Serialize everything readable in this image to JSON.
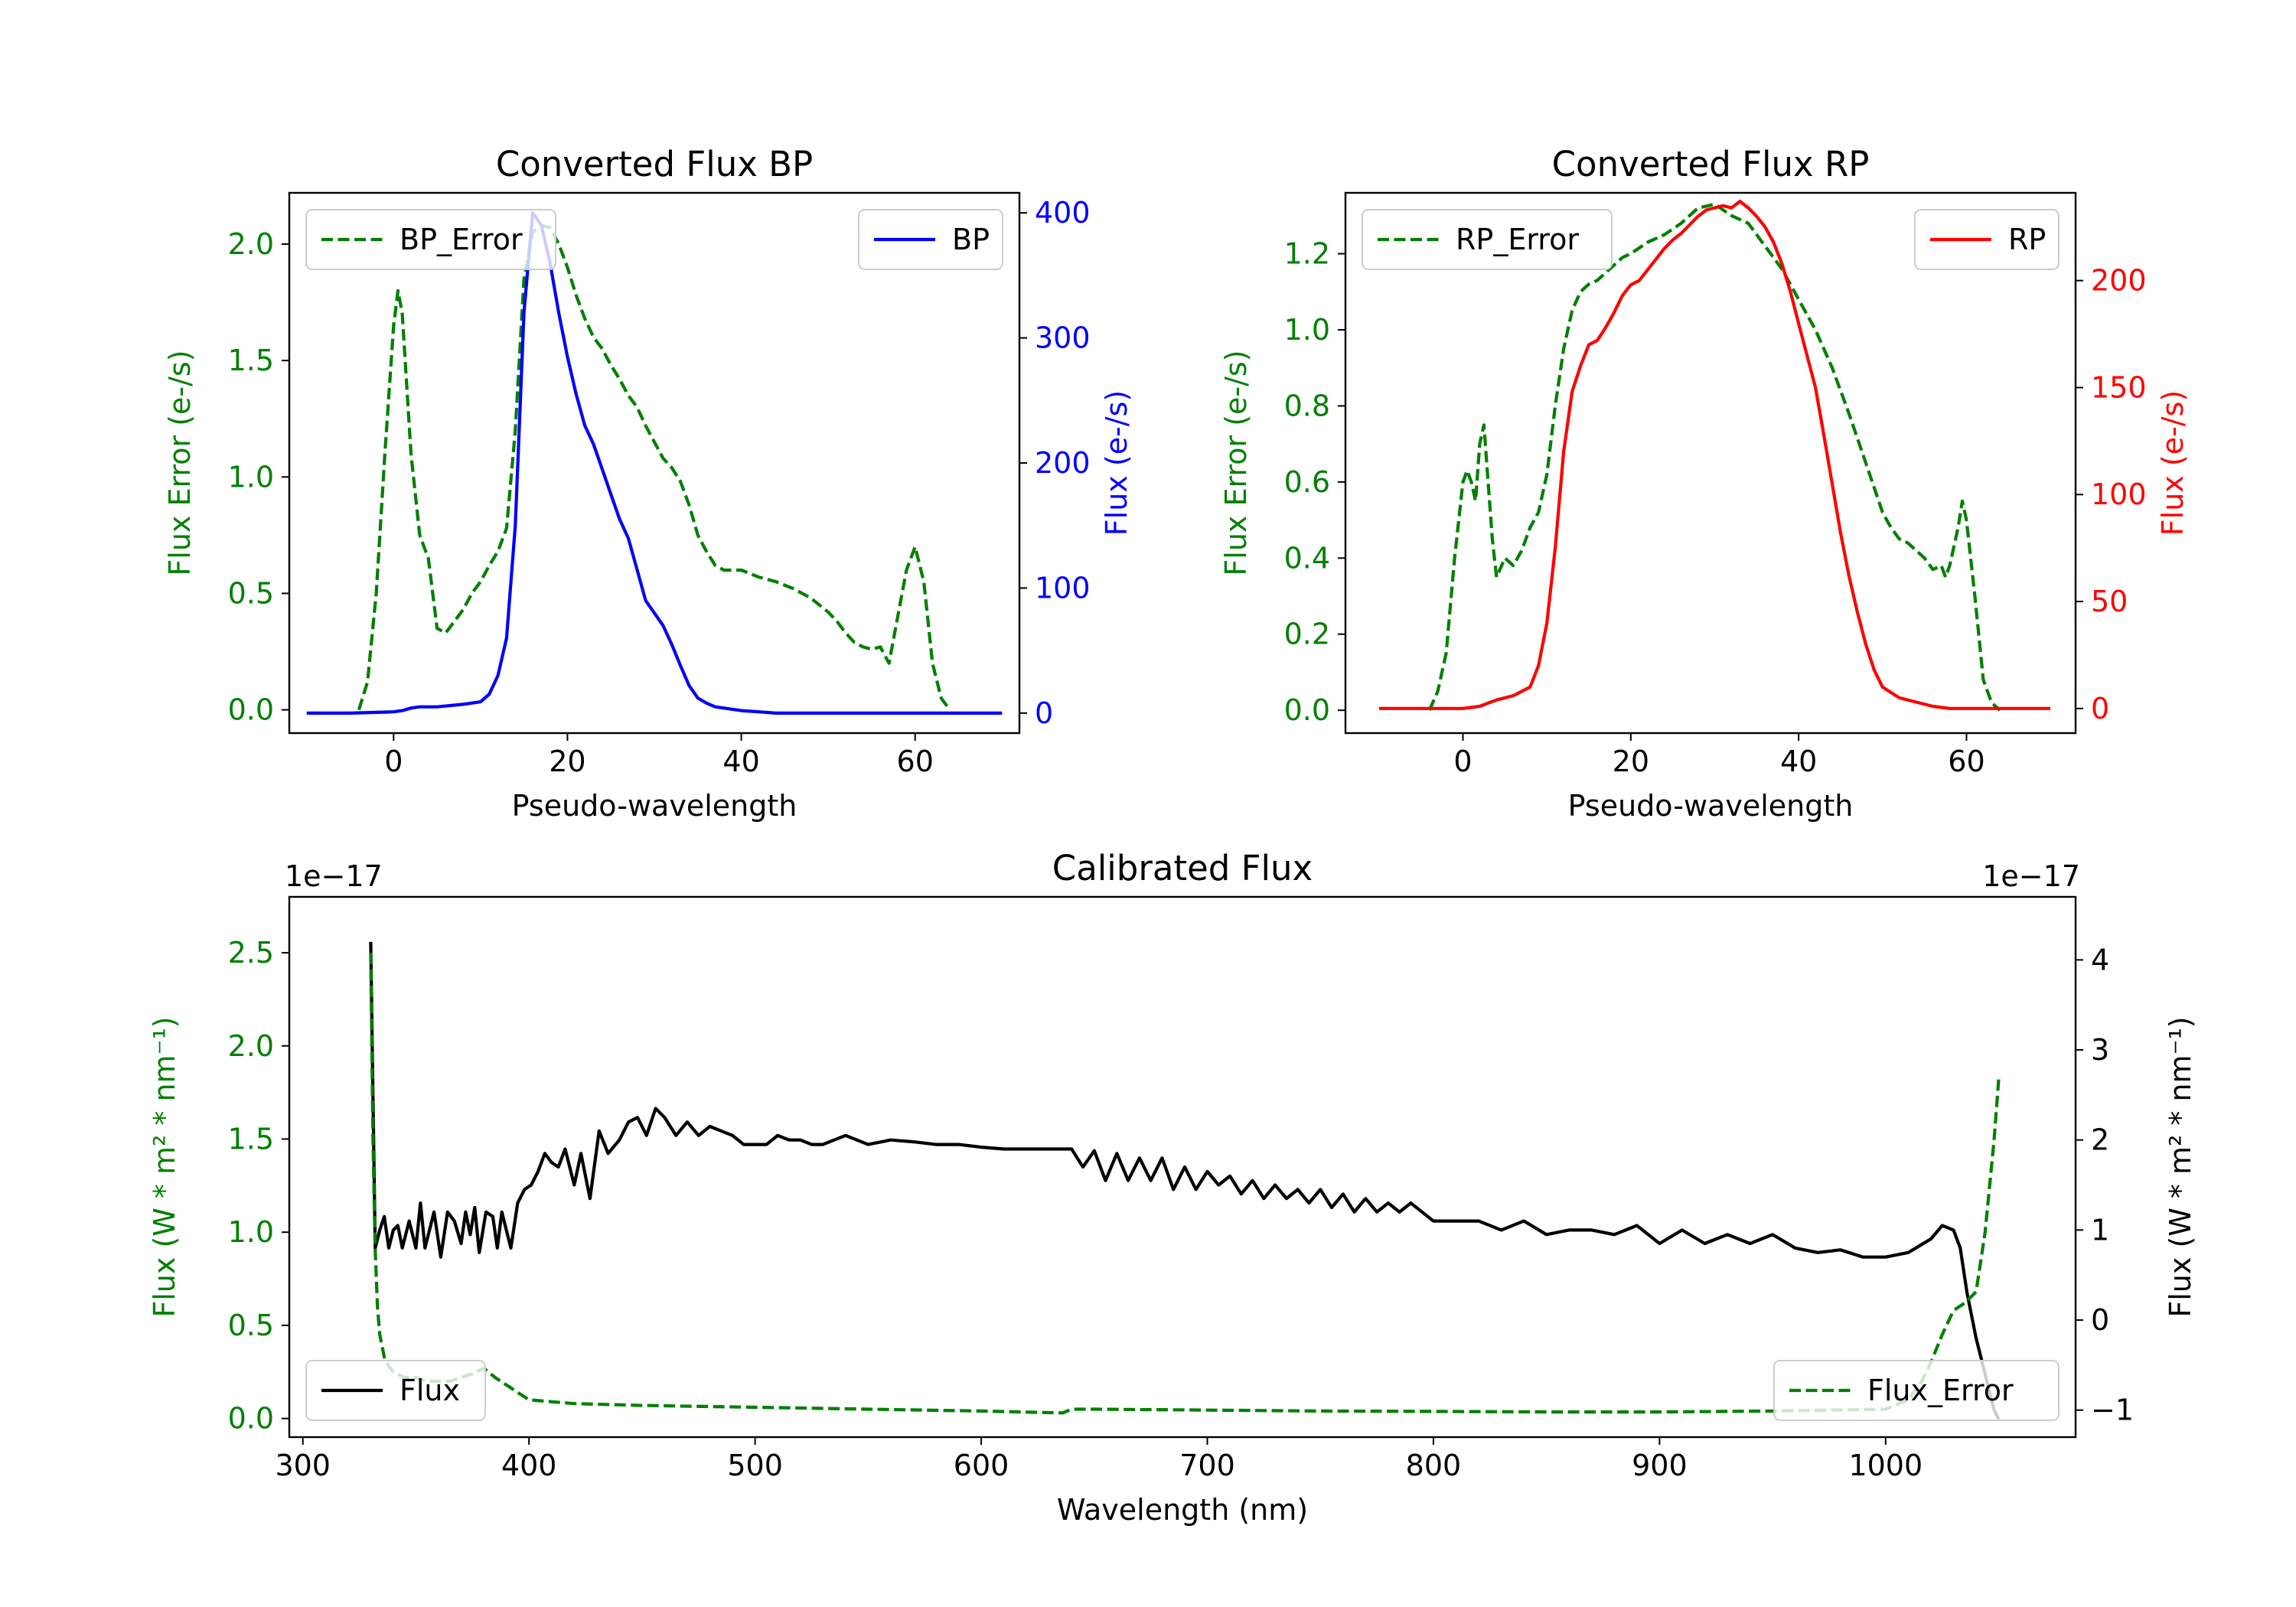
{
  "figure": {
    "background": "#ffffff"
  },
  "chart_data": [
    {
      "id": "bp",
      "type": "line",
      "title": "Converted Flux BP",
      "xlabel": "Pseudo-wavelength",
      "xlim": [
        -12,
        72
      ],
      "xticks": [
        0,
        20,
        40,
        60
      ],
      "xtick_labels": [
        "0",
        "20",
        "40",
        "60"
      ],
      "left_axis": {
        "label": "Flux Error (e-/s)",
        "color": "#008000",
        "ylim": [
          -0.1,
          2.22
        ],
        "ticks": [
          0.0,
          0.5,
          1.0,
          1.5,
          2.0
        ],
        "tick_labels": [
          "0.0",
          "0.5",
          "1.0",
          "1.5",
          "2.0"
        ]
      },
      "right_axis": {
        "label": "Flux (e-/s)",
        "color": "#0000ff",
        "ylim": [
          -16,
          416
        ],
        "ticks": [
          0,
          100,
          200,
          300,
          400
        ],
        "tick_labels": [
          "0",
          "100",
          "200",
          "300",
          "400"
        ]
      },
      "series": [
        {
          "name": "BP_Error",
          "axis": "left",
          "color": "#008000",
          "style": "dashed",
          "x": [
            -4,
            -3,
            -2,
            -1,
            0,
            0.5,
            1,
            2,
            3,
            4,
            5,
            6,
            7,
            8,
            9,
            10,
            11,
            12,
            13,
            14,
            15,
            16,
            17,
            18,
            19,
            20,
            21,
            22,
            23,
            24,
            25,
            26,
            27,
            28,
            29,
            30,
            31,
            32,
            33,
            34,
            35,
            36,
            37,
            38,
            39,
            40,
            42,
            44,
            46,
            48,
            50,
            51,
            52,
            53,
            54,
            55,
            56,
            57,
            58,
            59,
            60,
            61,
            62,
            63,
            64
          ],
          "y": [
            0.0,
            0.12,
            0.5,
            1.1,
            1.65,
            1.8,
            1.7,
            1.1,
            0.75,
            0.65,
            0.35,
            0.33,
            0.38,
            0.43,
            0.5,
            0.55,
            0.62,
            0.68,
            0.78,
            1.2,
            1.85,
            2.05,
            2.08,
            2.07,
            2.0,
            1.9,
            1.78,
            1.68,
            1.6,
            1.55,
            1.48,
            1.42,
            1.35,
            1.3,
            1.22,
            1.15,
            1.08,
            1.04,
            0.98,
            0.88,
            0.75,
            0.68,
            0.62,
            0.6,
            0.6,
            0.6,
            0.57,
            0.55,
            0.52,
            0.48,
            0.42,
            0.38,
            0.33,
            0.29,
            0.27,
            0.26,
            0.27,
            0.2,
            0.4,
            0.6,
            0.7,
            0.55,
            0.2,
            0.05,
            0.0
          ]
        },
        {
          "name": "BP",
          "axis": "right",
          "color": "#0000ff",
          "style": "solid",
          "x": [
            -10,
            -5,
            0,
            1,
            2,
            3,
            5,
            8,
            10,
            11,
            12,
            13,
            14,
            15,
            16,
            17,
            18,
            19,
            20,
            21,
            22,
            23,
            24,
            25,
            26,
            27,
            28,
            29,
            30,
            31,
            32,
            33,
            34,
            35,
            36,
            37,
            38,
            39,
            40,
            42,
            44,
            46,
            48,
            50,
            55,
            60,
            65,
            70
          ],
          "y": [
            0,
            0,
            1,
            2,
            4,
            5,
            5,
            7,
            9,
            15,
            30,
            60,
            150,
            320,
            400,
            390,
            360,
            320,
            285,
            255,
            230,
            215,
            195,
            175,
            155,
            140,
            115,
            90,
            80,
            70,
            55,
            38,
            22,
            12,
            8,
            5,
            4,
            3,
            2,
            1,
            0,
            0,
            0,
            0,
            0,
            0,
            0,
            0
          ]
        }
      ]
    },
    {
      "id": "rp",
      "type": "line",
      "title": "Converted Flux RP",
      "xlabel": "Pseudo-wavelength",
      "xlim": [
        -14,
        73
      ],
      "xticks": [
        0,
        20,
        40,
        60
      ],
      "xtick_labels": [
        "0",
        "20",
        "40",
        "60"
      ],
      "left_axis": {
        "label": "Flux Error (e-/s)",
        "color": "#008000",
        "ylim": [
          -0.06,
          1.36
        ],
        "ticks": [
          0.0,
          0.2,
          0.4,
          0.6,
          0.8,
          1.0,
          1.2
        ],
        "tick_labels": [
          "0.0",
          "0.2",
          "0.4",
          "0.6",
          "0.8",
          "1.0",
          "1.2"
        ]
      },
      "right_axis": {
        "label": "Flux (e-/s)",
        "color": "#ff0000",
        "ylim": [
          -11.5,
          241
        ],
        "ticks": [
          0,
          50,
          100,
          150,
          200
        ],
        "tick_labels": [
          "0",
          "50",
          "100",
          "150",
          "200"
        ]
      },
      "series": [
        {
          "name": "RP_Error",
          "axis": "left",
          "color": "#008000",
          "style": "dashed",
          "x": [
            -4,
            -3,
            -2,
            -1,
            0,
            0.5,
            1,
            1.5,
            2,
            2.5,
            3,
            3.5,
            4,
            5,
            6,
            7,
            8,
            9,
            10,
            11,
            12,
            13,
            14,
            15,
            16,
            17,
            18,
            19,
            20,
            22,
            24,
            26,
            28,
            30,
            32,
            34,
            36,
            38,
            40,
            42,
            44,
            46,
            48,
            50,
            51,
            52,
            53,
            54,
            55,
            56,
            57,
            57.5,
            58,
            59,
            59.5,
            60,
            61,
            62,
            63,
            64
          ],
          "y": [
            0.0,
            0.05,
            0.15,
            0.4,
            0.6,
            0.63,
            0.6,
            0.55,
            0.7,
            0.75,
            0.6,
            0.45,
            0.35,
            0.4,
            0.38,
            0.42,
            0.48,
            0.52,
            0.62,
            0.8,
            0.95,
            1.05,
            1.1,
            1.12,
            1.13,
            1.15,
            1.17,
            1.19,
            1.2,
            1.23,
            1.25,
            1.28,
            1.32,
            1.33,
            1.3,
            1.28,
            1.22,
            1.16,
            1.08,
            1.0,
            0.9,
            0.78,
            0.65,
            0.52,
            0.48,
            0.45,
            0.44,
            0.42,
            0.4,
            0.37,
            0.38,
            0.35,
            0.38,
            0.48,
            0.55,
            0.5,
            0.3,
            0.08,
            0.02,
            0.0
          ]
        },
        {
          "name": "RP",
          "axis": "right",
          "color": "#ff0000",
          "style": "solid",
          "x": [
            -10,
            -5,
            0,
            2,
            4,
            6,
            8,
            9,
            10,
            11,
            12,
            13,
            14,
            15,
            16,
            17,
            18,
            19,
            20,
            21,
            22,
            23,
            24,
            25,
            26,
            27,
            28,
            29,
            30,
            31,
            32,
            33,
            34,
            35,
            36,
            37,
            38,
            39,
            40,
            41,
            42,
            43,
            44,
            45,
            46,
            47,
            48,
            49,
            50,
            52,
            54,
            56,
            58,
            60,
            62,
            65,
            70
          ],
          "y": [
            0,
            0,
            0,
            1,
            4,
            6,
            10,
            20,
            40,
            75,
            120,
            148,
            160,
            170,
            172,
            178,
            185,
            193,
            198,
            200,
            205,
            210,
            215,
            219,
            222,
            226,
            230,
            233,
            234,
            235,
            234,
            237,
            234,
            230,
            225,
            218,
            208,
            195,
            180,
            165,
            150,
            128,
            105,
            82,
            62,
            45,
            30,
            18,
            10,
            5,
            3,
            1,
            0,
            0,
            0,
            0,
            0
          ]
        }
      ]
    },
    {
      "id": "cal",
      "type": "line",
      "title": "Calibrated Flux",
      "xlabel": "Wavelength (nm)",
      "xlim": [
        294,
        1084
      ],
      "xticks": [
        300,
        400,
        500,
        600,
        700,
        800,
        900,
        1000
      ],
      "xtick_labels": [
        "300",
        "400",
        "500",
        "600",
        "700",
        "800",
        "900",
        "1000"
      ],
      "left_axis": {
        "label": "Flux (W * m² * nm⁻¹)",
        "color": "#008000",
        "ylim": [
          -0.1,
          2.8
        ],
        "offset_text": "1e−17",
        "ticks": [
          0.0,
          0.5,
          1.0,
          1.5,
          2.0,
          2.5
        ],
        "tick_labels": [
          "0.0",
          "0.5",
          "1.0",
          "1.5",
          "2.0",
          "2.5"
        ]
      },
      "right_axis": {
        "label": "Flux (W * m² * nm⁻¹)",
        "color": "#000000",
        "ylim": [
          -1.3,
          4.7
        ],
        "offset_text": "1e−17",
        "ticks": [
          -1,
          0,
          1,
          2,
          3,
          4
        ],
        "tick_labels": [
          "−1",
          "0",
          "1",
          "2",
          "3",
          "4"
        ]
      },
      "series": [
        {
          "name": "Flux",
          "axis": "right",
          "color": "#000000",
          "style": "solid",
          "x": [
            330,
            331,
            332,
            334,
            336,
            338,
            340,
            342,
            344,
            347,
            350,
            352,
            354,
            356,
            358,
            361,
            364,
            367,
            370,
            372,
            374,
            376,
            378,
            381,
            384,
            386,
            388,
            390,
            392,
            395,
            398,
            401,
            404,
            407,
            410,
            413,
            416,
            420,
            423,
            427,
            431,
            435,
            440,
            444,
            448,
            452,
            456,
            460,
            465,
            470,
            475,
            480,
            485,
            490,
            495,
            500,
            505,
            510,
            515,
            520,
            525,
            530,
            540,
            550,
            560,
            570,
            580,
            590,
            600,
            610,
            620,
            630,
            640,
            645,
            650,
            655,
            660,
            665,
            670,
            675,
            680,
            685,
            690,
            695,
            700,
            705,
            710,
            715,
            720,
            725,
            730,
            735,
            740,
            745,
            750,
            755,
            760,
            765,
            770,
            775,
            780,
            785,
            790,
            800,
            810,
            820,
            830,
            840,
            850,
            860,
            870,
            880,
            890,
            900,
            910,
            920,
            930,
            940,
            950,
            960,
            970,
            980,
            990,
            1000,
            1010,
            1020,
            1025,
            1030,
            1033,
            1036,
            1040,
            1044,
            1048,
            1050
          ],
          "y": [
            4.2,
            2.5,
            0.8,
            1.0,
            1.15,
            0.8,
            1.0,
            1.05,
            0.8,
            1.1,
            0.8,
            1.3,
            0.8,
            1.0,
            1.2,
            0.7,
            1.2,
            1.1,
            0.85,
            1.2,
            0.95,
            1.25,
            0.75,
            1.2,
            1.15,
            0.8,
            1.2,
            1.0,
            0.8,
            1.3,
            1.45,
            1.5,
            1.65,
            1.85,
            1.75,
            1.7,
            1.9,
            1.5,
            1.85,
            1.35,
            2.1,
            1.85,
            2.0,
            2.2,
            2.25,
            2.05,
            2.35,
            2.25,
            2.05,
            2.2,
            2.05,
            2.15,
            2.1,
            2.05,
            1.95,
            1.95,
            1.95,
            2.05,
            2.0,
            2.0,
            1.95,
            1.95,
            2.05,
            1.95,
            2.0,
            1.98,
            1.95,
            1.95,
            1.92,
            1.9,
            1.9,
            1.9,
            1.9,
            1.7,
            1.88,
            1.55,
            1.85,
            1.55,
            1.8,
            1.55,
            1.8,
            1.45,
            1.7,
            1.45,
            1.65,
            1.5,
            1.6,
            1.4,
            1.55,
            1.35,
            1.5,
            1.35,
            1.45,
            1.3,
            1.45,
            1.25,
            1.4,
            1.2,
            1.35,
            1.2,
            1.3,
            1.2,
            1.3,
            1.1,
            1.1,
            1.1,
            1.0,
            1.1,
            0.95,
            1.0,
            1.0,
            0.95,
            1.05,
            0.85,
            1.0,
            0.85,
            0.95,
            0.85,
            0.95,
            0.8,
            0.75,
            0.78,
            0.7,
            0.7,
            0.75,
            0.9,
            1.05,
            1.0,
            0.8,
            0.3,
            -0.2,
            -0.6,
            -1.0,
            -1.1
          ]
        },
        {
          "name": "Flux_Error",
          "axis": "left",
          "color": "#008000",
          "style": "dashed",
          "x": [
            330,
            331,
            332,
            333,
            334,
            336,
            338,
            340,
            345,
            350,
            355,
            360,
            365,
            370,
            375,
            380,
            385,
            390,
            395,
            400,
            420,
            450,
            500,
            550,
            600,
            636,
            640,
            650,
            700,
            750,
            800,
            850,
            900,
            950,
            1000,
            1010,
            1016,
            1020,
            1025,
            1030,
            1035,
            1040,
            1044,
            1048,
            1050
          ],
          "y": [
            2.5,
            1.5,
            0.9,
            0.6,
            0.45,
            0.33,
            0.28,
            0.25,
            0.22,
            0.22,
            0.2,
            0.2,
            0.2,
            0.22,
            0.24,
            0.27,
            0.22,
            0.18,
            0.14,
            0.1,
            0.08,
            0.07,
            0.06,
            0.05,
            0.04,
            0.03,
            0.05,
            0.05,
            0.045,
            0.04,
            0.038,
            0.035,
            0.035,
            0.04,
            0.05,
            0.1,
            0.2,
            0.3,
            0.45,
            0.58,
            0.62,
            0.68,
            1.0,
            1.5,
            1.82
          ]
        }
      ]
    }
  ]
}
